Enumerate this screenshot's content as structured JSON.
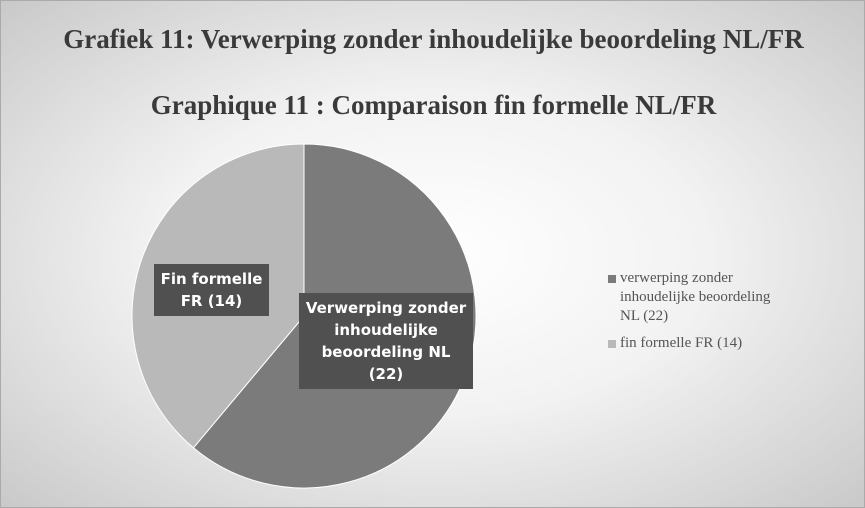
{
  "chart_data": {
    "type": "pie",
    "title": "Grafiek 11: Verwerping zonder inhoudelijke beoordeling NL/FR",
    "subtitle": "Graphique 11 : Comparaison fin formelle NL/FR",
    "categories": [
      "verwerping zonder inhoudelijke beoordeling NL (22)",
      "fin formelle FR (14)"
    ],
    "values": [
      22,
      14
    ],
    "value_labels": [
      "Verwerping zonder inhoudelijke beoordeling NL (22)",
      "Fin formelle FR (14)"
    ],
    "colors": [
      "#7b7b7b",
      "#b9b9b9"
    ],
    "legend": "right"
  }
}
